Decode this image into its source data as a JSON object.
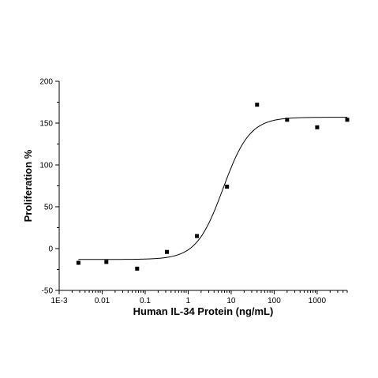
{
  "chart_data": {
    "type": "scatter",
    "title": "",
    "xlabel": "Human IL-34 Protein (ng/mL)",
    "ylabel": "Proliferation %",
    "xscale": "log",
    "xlim": [
      0.001,
      5000
    ],
    "ylim": [
      -50,
      200
    ],
    "grid": false,
    "legend": "none",
    "x_ticks": [
      {
        "value": 0.001,
        "label": "1E-3"
      },
      {
        "value": 0.01,
        "label": "0.01"
      },
      {
        "value": 0.1,
        "label": "0.1"
      },
      {
        "value": 1,
        "label": "1"
      },
      {
        "value": 10,
        "label": "10"
      },
      {
        "value": 100,
        "label": "100"
      },
      {
        "value": 1000,
        "label": "1000"
      }
    ],
    "y_ticks": [
      {
        "value": -50,
        "label": "-50"
      },
      {
        "value": 0,
        "label": "0"
      },
      {
        "value": 50,
        "label": "50"
      },
      {
        "value": 100,
        "label": "100"
      },
      {
        "value": 150,
        "label": "150"
      },
      {
        "value": 200,
        "label": "200"
      }
    ],
    "series": [
      {
        "marker": "square",
        "color": "#000000",
        "x": [
          0.0028,
          0.0125,
          0.065,
          0.32,
          1.6,
          8,
          40,
          200,
          1000,
          5000
        ],
        "y": [
          -17,
          -16,
          -24,
          -4,
          15,
          74,
          172,
          154,
          145,
          154
        ]
      }
    ],
    "fit": {
      "model": "four-parameter logistic",
      "bottom": -13,
      "top": 157,
      "ec50": 6.5,
      "hill": 1.4
    }
  }
}
